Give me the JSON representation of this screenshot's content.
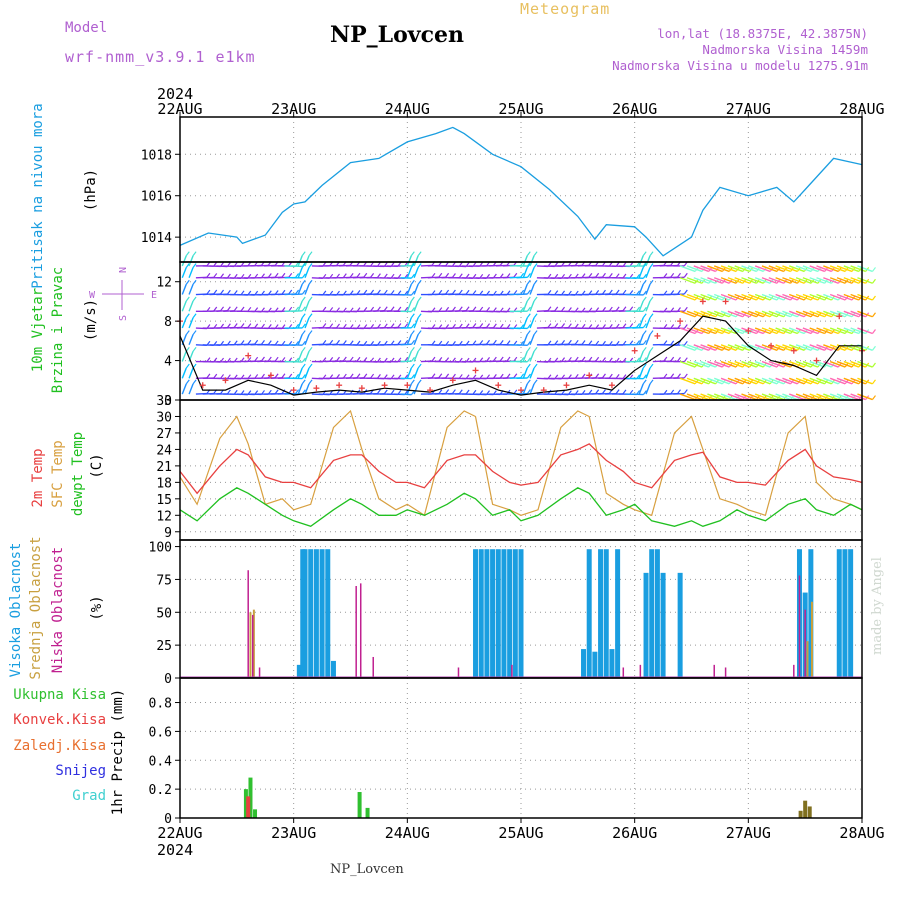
{
  "header": {
    "title": "NP_Lovcen",
    "model_label": "Model",
    "model_value": "wrf-nmm_v3.9.1 e1km",
    "meteogram_label": "Meteogram",
    "info_line1": "lon,lat (18.8375E, 42.3875N)",
    "info_line2": "Nadmorska Visina 1459m",
    "info_line3": "Nadmorska Visina u modelu 1275.91m"
  },
  "footer": {
    "name": "NP_Lovcen",
    "made_by": "made by Angel"
  },
  "x_axis": {
    "year": "2024",
    "ticks": [
      "22AUG",
      "23AUG",
      "24AUG",
      "25AUG",
      "26AUG",
      "27AUG",
      "28AUG"
    ]
  },
  "panels": {
    "pressure": {
      "label": "Pritisak na nivou mora",
      "unit": "(hPa)",
      "yticks": [
        "1014",
        "1016",
        "1018"
      ]
    },
    "wind": {
      "label1": "10m Vjetar",
      "label2": "Brzina i Pravac",
      "unit": "(m/s)",
      "yticks": [
        "0",
        "4",
        "8",
        "12"
      ],
      "compass": {
        "n": "N",
        "s": "S",
        "e": "E",
        "w": "W"
      }
    },
    "temp": {
      "label1": "2m Temp",
      "label2": "SFC Temp",
      "label3": "dewpt Temp",
      "unit": "(C)",
      "yticks": [
        "9",
        "12",
        "15",
        "18",
        "21",
        "24",
        "27",
        "30",
        "33"
      ]
    },
    "cloud": {
      "label1": "Visoka Oblacnost",
      "label2": "Srednja Oblacnost",
      "label3": "Niska Oblacnost",
      "unit": "(%)",
      "yticks": [
        "0",
        "25",
        "50",
        "75",
        "100"
      ]
    },
    "precip": {
      "labels": [
        "Ukupna Kisa",
        "Konvek.Kisa",
        "Zaledj.Kisa",
        "Snijeg",
        "Grad"
      ],
      "unit": "1hr Precip (mm)",
      "yticks": [
        "0",
        "0.2",
        "0.4",
        "0.6",
        "0.8"
      ]
    }
  },
  "colors": {
    "pressure": "#1a9ee0",
    "t2m": "#e84040",
    "sfc": "#d8a040",
    "dewpt": "#20c020",
    "high_cloud": "#1a9ee0",
    "mid_cloud": "#c8a040",
    "low_cloud": "#c02090",
    "wind_speed": "#000000",
    "wind_gust": "#e84040",
    "precip_total": "#30c030",
    "precip_other": "#807020"
  },
  "chart_data": [
    {
      "type": "line",
      "title": "Pritisak na nivou mora",
      "ylabel": "(hPa)",
      "ylim": [
        1012.8,
        1019.8
      ],
      "grid": true,
      "x_days": [
        0,
        0.25,
        0.5,
        0.55,
        0.75,
        0.9,
        1.0,
        1.1,
        1.25,
        1.5,
        1.75,
        2.0,
        2.25,
        2.4,
        2.5,
        2.75,
        3.0,
        3.25,
        3.5,
        3.65,
        3.75,
        4.0,
        4.1,
        4.25,
        4.5,
        4.6,
        4.75,
        5.0,
        5.25,
        5.4,
        5.5,
        5.75,
        6.0
      ],
      "values": [
        1013.6,
        1014.2,
        1014.0,
        1013.7,
        1014.1,
        1015.2,
        1015.6,
        1015.7,
        1016.5,
        1017.6,
        1017.8,
        1018.6,
        1019.0,
        1019.3,
        1019.0,
        1018.0,
        1017.4,
        1016.3,
        1015.0,
        1013.9,
        1014.6,
        1014.5,
        1014.0,
        1013.1,
        1014.0,
        1015.3,
        1016.4,
        1016.0,
        1016.4,
        1015.7,
        1016.3,
        1017.8,
        1017.5
      ]
    },
    {
      "type": "line",
      "title": "10m Vjetar Brzina i Pravac",
      "ylabel": "(m/s)",
      "ylim": [
        0,
        14
      ],
      "grid": true,
      "x_days": [
        0,
        0.2,
        0.4,
        0.6,
        0.8,
        1.0,
        1.2,
        1.4,
        1.6,
        1.8,
        2.0,
        2.2,
        2.4,
        2.6,
        2.8,
        3.0,
        3.2,
        3.4,
        3.6,
        3.8,
        4.0,
        4.2,
        4.4,
        4.6,
        4.8,
        5.0,
        5.2,
        5.4,
        5.6,
        5.8,
        6.0
      ],
      "series": [
        {
          "values": [
            6.5,
            1.0,
            1.0,
            2.0,
            1.5,
            0.5,
            0.8,
            1.0,
            0.8,
            1.2,
            1.0,
            0.8,
            1.5,
            2.0,
            1.0,
            0.5,
            0.8,
            1.0,
            1.5,
            1.0,
            3.0,
            4.5,
            6.0,
            8.5,
            8.0,
            5.5,
            4.0,
            3.5,
            2.5,
            5.5,
            5.5
          ]
        },
        {
          "values": [
            8.0,
            1.5,
            2.0,
            4.5,
            2.5,
            1.0,
            1.2,
            1.5,
            1.2,
            1.5,
            1.5,
            1.0,
            2.0,
            3.0,
            1.5,
            1.0,
            1.0,
            1.5,
            2.5,
            1.5,
            5.0,
            6.5,
            8.0,
            10.0,
            10.0,
            7.0,
            5.5,
            5.0,
            4.0,
            8.5,
            5.0
          ]
        }
      ]
    },
    {
      "type": "line",
      "title": "2m Temp / SFC Temp / dewpt Temp",
      "ylabel": "(C)",
      "ylim": [
        7.5,
        33
      ],
      "grid": true,
      "x_days": [
        0,
        0.15,
        0.35,
        0.5,
        0.6,
        0.75,
        0.9,
        1.0,
        1.15,
        1.35,
        1.5,
        1.6,
        1.75,
        1.9,
        2.0,
        2.15,
        2.35,
        2.5,
        2.6,
        2.75,
        2.9,
        3.0,
        3.15,
        3.35,
        3.5,
        3.6,
        3.75,
        3.9,
        4.0,
        4.15,
        4.35,
        4.5,
        4.6,
        4.75,
        4.9,
        5.0,
        5.15,
        5.35,
        5.5,
        5.6,
        5.75,
        5.9,
        6.0
      ],
      "series": [
        {
          "values": [
            20,
            16,
            21,
            24,
            23,
            19,
            18,
            18,
            17,
            22,
            23,
            23,
            20,
            18,
            18,
            17,
            22,
            23,
            23,
            20,
            18,
            17.5,
            18,
            23,
            24,
            25,
            22,
            20,
            18,
            17,
            22,
            23,
            23.5,
            19,
            18,
            18,
            17.5,
            22,
            24,
            21,
            19,
            18.5,
            18
          ]
        },
        {
          "values": [
            19,
            14,
            26,
            30,
            25,
            14,
            15,
            13,
            14,
            28,
            31,
            24,
            15,
            13,
            14,
            12,
            28,
            31,
            30,
            14,
            13,
            12,
            13,
            28,
            31,
            30,
            16,
            14,
            13,
            12,
            27,
            30,
            24,
            15,
            14,
            13,
            12,
            27,
            30,
            18,
            15,
            14,
            13
          ]
        },
        {
          "values": [
            13,
            11,
            15,
            17,
            16,
            14,
            12,
            11,
            10,
            13,
            15,
            14,
            12,
            12,
            13,
            12,
            14,
            16,
            15,
            12,
            13,
            11,
            12,
            15,
            17,
            16,
            12,
            13,
            14,
            11,
            10,
            11,
            10,
            11,
            13,
            12,
            11,
            14,
            15,
            13,
            12,
            14,
            13
          ]
        }
      ]
    },
    {
      "type": "bar",
      "title": "Visoka / Srednja / Niska Oblacnost",
      "ylabel": "(%)",
      "ylim": [
        0,
        105
      ],
      "grid": true,
      "series": [
        {
          "name": "Visoka Oblacnost",
          "x_days": [
            1.05,
            1.08,
            1.1,
            1.15,
            1.2,
            1.25,
            1.3,
            1.35,
            2.6,
            2.65,
            2.7,
            2.75,
            2.8,
            2.85,
            2.9,
            2.95,
            3.0,
            3.55,
            3.6,
            3.65,
            3.7,
            3.75,
            3.8,
            3.85,
            4.1,
            4.15,
            4.2,
            4.25,
            4.4,
            5.45,
            5.5,
            5.55,
            5.8,
            5.85,
            5.9
          ],
          "values": [
            10,
            98,
            98,
            98,
            98,
            98,
            98,
            13,
            98,
            98,
            98,
            98,
            98,
            98,
            98,
            98,
            98,
            22,
            98,
            20,
            98,
            98,
            22,
            98,
            80,
            98,
            98,
            80,
            80,
            98,
            65,
            98,
            98,
            98,
            98
          ]
        },
        {
          "name": "Srednja Oblacnost",
          "x_days": [
            0.62,
            0.65,
            5.52,
            5.56
          ],
          "values": [
            50,
            52,
            28,
            58
          ]
        },
        {
          "name": "Niska Oblacnost",
          "x_days": [
            0.6,
            0.64,
            0.7,
            1.55,
            1.59,
            1.7,
            2.45,
            2.92,
            3.9,
            4.05,
            4.7,
            4.8,
            5.4,
            5.45,
            5.5
          ],
          "values": [
            82,
            48,
            8,
            70,
            72,
            16,
            8,
            10,
            8,
            10,
            10,
            8,
            10,
            78,
            52
          ]
        }
      ]
    },
    {
      "type": "bar",
      "title": "1hr Precip",
      "ylabel": "1hr Precip (mm)",
      "ylim": [
        0,
        0.97
      ],
      "grid": true,
      "series": [
        {
          "name": "Ukupna Kisa",
          "x_days": [
            0.58,
            0.62,
            0.66,
            1.58,
            1.65
          ],
          "values": [
            0.2,
            0.28,
            0.06,
            0.18,
            0.07
          ]
        },
        {
          "name": "Konvek.Kisa",
          "x_days": [
            0.6
          ],
          "values": [
            0.15
          ]
        },
        {
          "name": "Zaledj.Kisa",
          "x_days": [
            5.46,
            5.5,
            5.54
          ],
          "values": [
            0.05,
            0.12,
            0.08
          ]
        }
      ]
    }
  ]
}
